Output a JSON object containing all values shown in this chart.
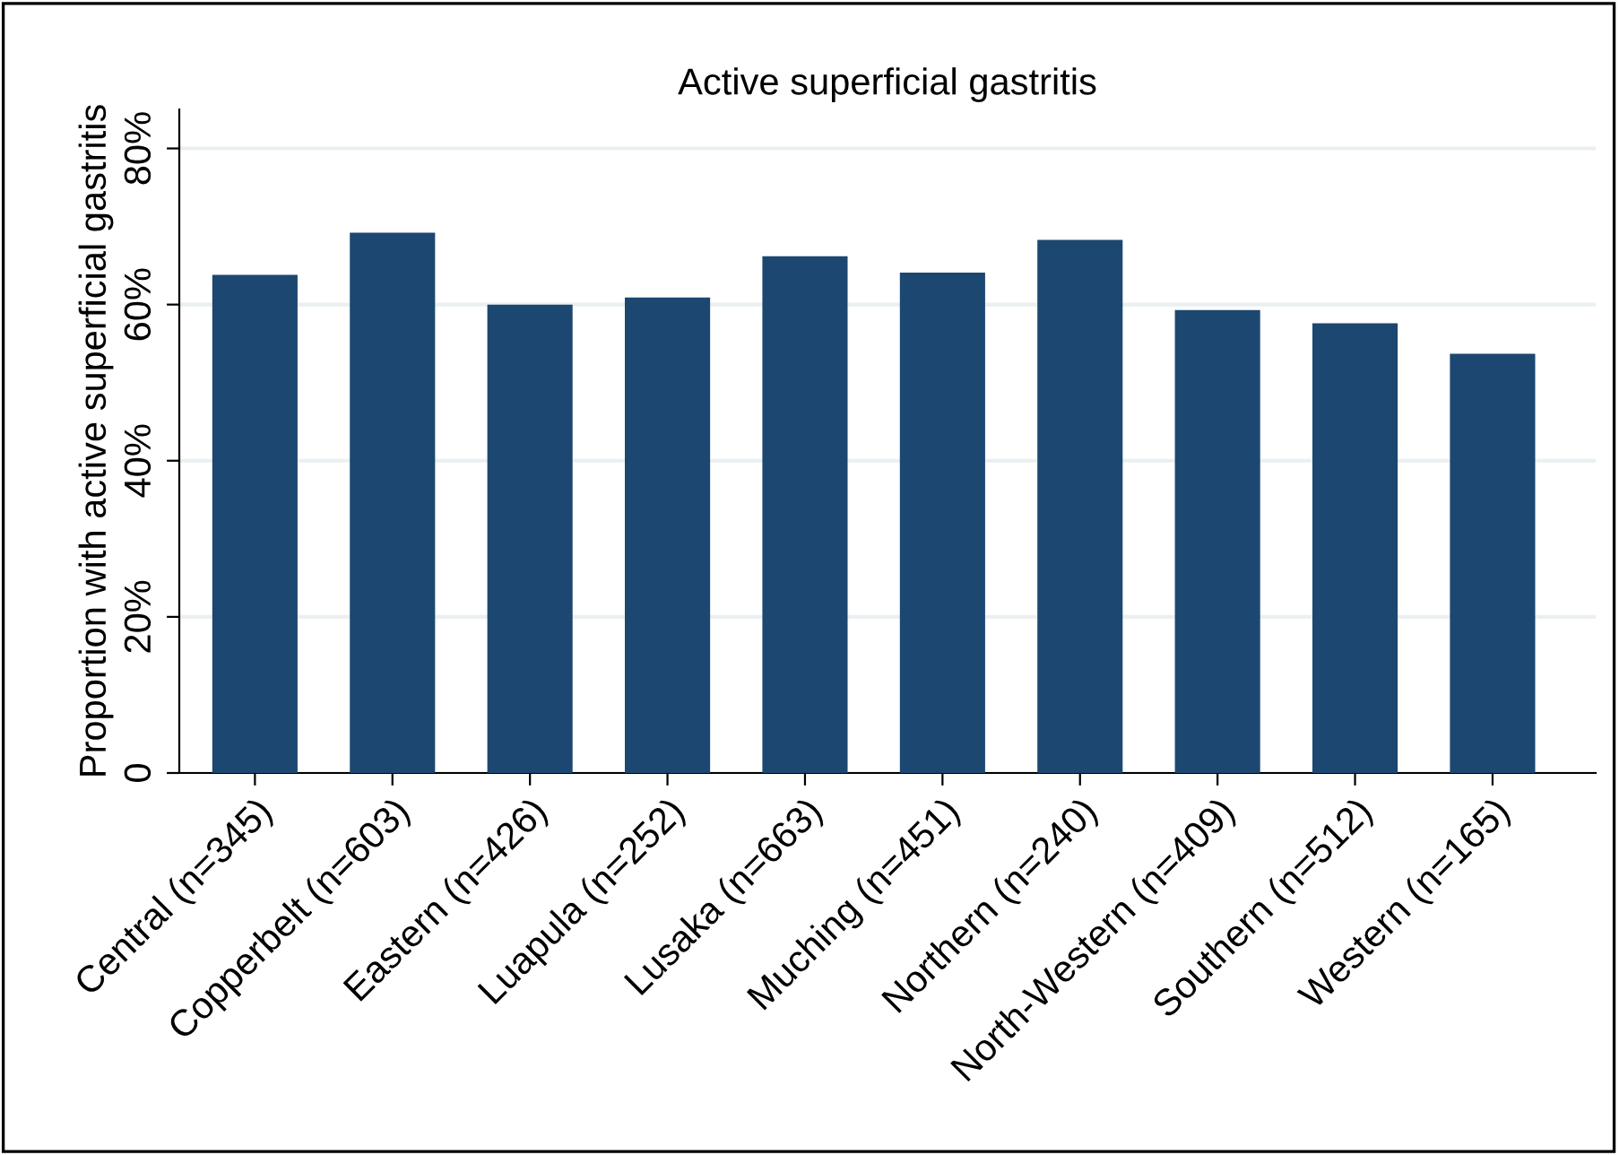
{
  "chart_data": {
    "type": "bar",
    "title": "Active superficial gastritis",
    "ylabel": "Proportion with active superficial gastritis",
    "categories": [
      "Central (n=345)",
      "Copperbelt (n=603)",
      "Eastern (n=426)",
      "Luapula (n=252)",
      "Lusaka (n=663)",
      "Muching (n=451)",
      "Northern (n=240)",
      "North-Western (n=409)",
      "Southern (n=512)",
      "Western (n=165)"
    ],
    "values": [
      63.8,
      69.2,
      60.0,
      60.9,
      66.2,
      64.1,
      68.3,
      59.3,
      57.6,
      53.7
    ],
    "color": "#1c4770",
    "ylim": [
      0,
      85
    ],
    "yticks": [
      {
        "value": 0,
        "label": "0"
      },
      {
        "value": 20,
        "label": "20%"
      },
      {
        "value": 40,
        "label": "40%"
      },
      {
        "value": 60,
        "label": "60%"
      },
      {
        "value": 80,
        "label": "80%"
      }
    ],
    "grid": "y",
    "legend": false
  }
}
